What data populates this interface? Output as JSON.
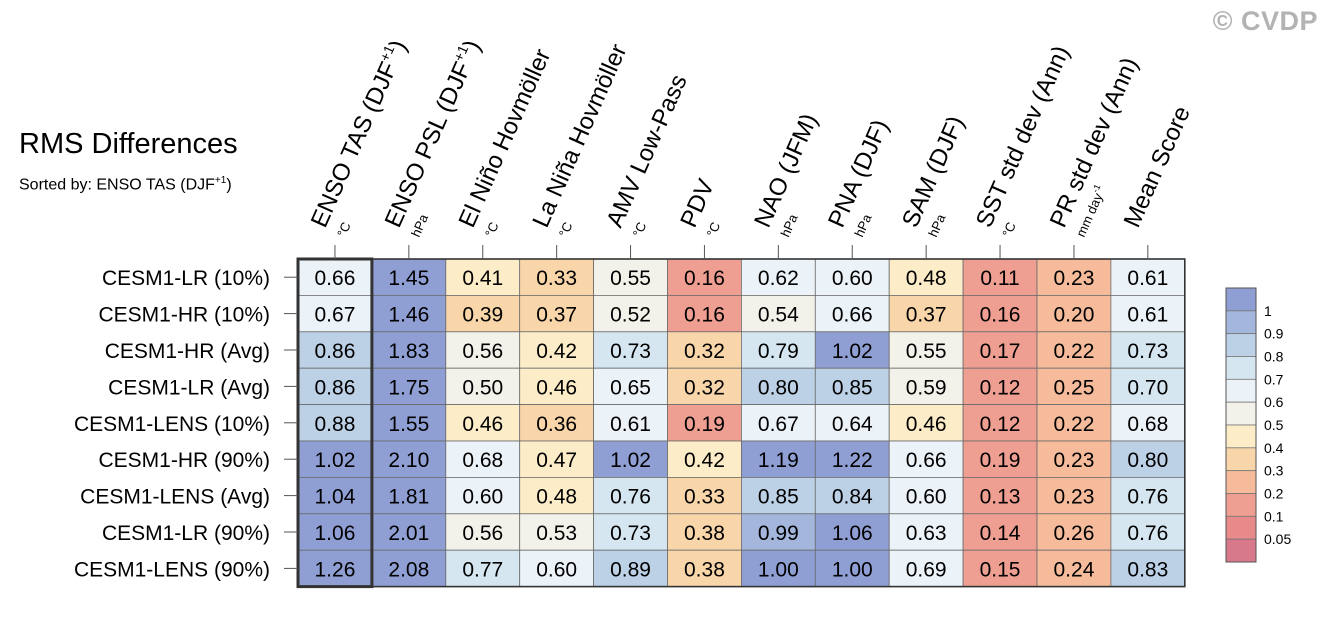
{
  "watermark": "© CVDP",
  "title": "RMS Differences",
  "subtitle": {
    "prefix": "Sorted by: ENSO TAS (DJF",
    "sup": "+1",
    "suffix": ")"
  },
  "chart_data": {
    "type": "heatmap",
    "columns": [
      {
        "label": "ENSO TAS (DJF",
        "sup": "+1",
        "tail": ")",
        "unit": "°C"
      },
      {
        "label": "ENSO PSL (DJF",
        "sup": "+1",
        "tail": ")",
        "unit": "hPa"
      },
      {
        "label": "El Niño Hovmöller",
        "unit": "°C"
      },
      {
        "label": "La Niña Hovmöller",
        "unit": "°C"
      },
      {
        "label": "AMV Low-Pass",
        "unit": "°C"
      },
      {
        "label": "PDV",
        "unit": "°C"
      },
      {
        "label": "NAO (JFM)",
        "unit": "hPa"
      },
      {
        "label": "PNA (DJF)",
        "unit": "hPa"
      },
      {
        "label": "SAM (DJF)",
        "unit": "hPa"
      },
      {
        "label": "SST std dev (Ann)",
        "unit": "°C"
      },
      {
        "label": "PR std dev (Ann)",
        "unit": "mm day",
        "unit_sup": "-1"
      },
      {
        "label": "Mean Score",
        "unit": ""
      }
    ],
    "rows": [
      "CESM1-LR (10%)",
      "CESM1-HR (10%)",
      "CESM1-HR (Avg)",
      "CESM1-LR (Avg)",
      "CESM1-LENS (10%)",
      "CESM1-HR (90%)",
      "CESM1-LENS (Avg)",
      "CESM1-LR (90%)",
      "CESM1-LENS (90%)"
    ],
    "values": [
      [
        0.66,
        1.45,
        0.41,
        0.33,
        0.55,
        0.16,
        0.62,
        0.6,
        0.48,
        0.11,
        0.23,
        0.61
      ],
      [
        0.67,
        1.46,
        0.39,
        0.37,
        0.52,
        0.16,
        0.54,
        0.66,
        0.37,
        0.16,
        0.2,
        0.61
      ],
      [
        0.86,
        1.83,
        0.56,
        0.42,
        0.73,
        0.32,
        0.79,
        1.02,
        0.55,
        0.17,
        0.22,
        0.73
      ],
      [
        0.86,
        1.75,
        0.5,
        0.46,
        0.65,
        0.32,
        0.8,
        0.85,
        0.59,
        0.12,
        0.25,
        0.7
      ],
      [
        0.88,
        1.55,
        0.46,
        0.36,
        0.61,
        0.19,
        0.67,
        0.64,
        0.46,
        0.12,
        0.22,
        0.68
      ],
      [
        1.02,
        2.1,
        0.68,
        0.47,
        1.02,
        0.42,
        1.19,
        1.22,
        0.66,
        0.19,
        0.23,
        0.8
      ],
      [
        1.04,
        1.81,
        0.6,
        0.48,
        0.76,
        0.33,
        0.85,
        0.84,
        0.6,
        0.13,
        0.23,
        0.76
      ],
      [
        1.06,
        2.01,
        0.56,
        0.53,
        0.73,
        0.38,
        0.99,
        1.06,
        0.63,
        0.14,
        0.26,
        0.76
      ],
      [
        1.26,
        2.08,
        0.77,
        0.6,
        0.89,
        0.38,
        1.0,
        1.0,
        0.69,
        0.15,
        0.24,
        0.83
      ]
    ],
    "highlight_column": 0,
    "colorbar": {
      "levels": [
        "1",
        "0.9",
        "0.8",
        "0.7",
        "0.6",
        "0.5",
        "0.4",
        "0.3",
        "0.2",
        "0.1",
        "0.05"
      ],
      "colors": [
        "#8f9fd3",
        "#a4b6dc",
        "#bcd0e6",
        "#d6e6f1",
        "#ecf3f8",
        "#f3f2ea",
        "#fcecc8",
        "#f8d6aa",
        "#f5bb9a",
        "#ee9f91",
        "#e88a8a",
        "#d8788b"
      ]
    }
  }
}
